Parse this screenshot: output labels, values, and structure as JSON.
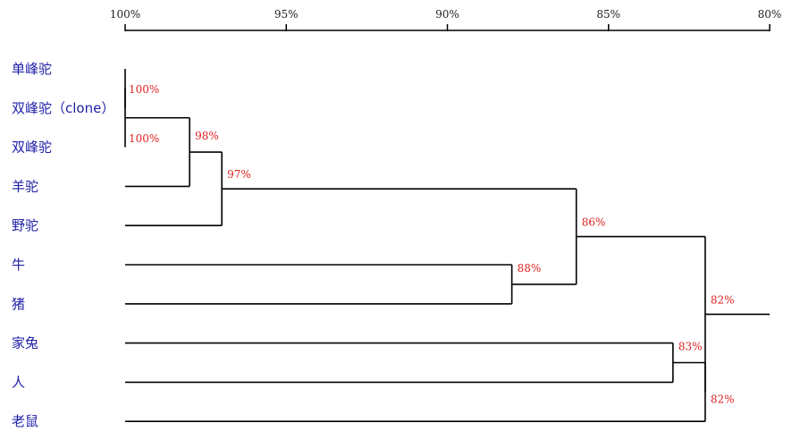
{
  "dendrogram": {
    "axis": {
      "ticks": [
        "100%",
        "95%",
        "90%",
        "85%",
        "80%"
      ]
    },
    "leaves": [
      "单峰驼",
      "双峰驼（clone）",
      "双峰驼",
      "羊驼",
      "野驼",
      "牛",
      "猪",
      "家兔",
      "人",
      "老鼠"
    ],
    "nodes": [
      {
        "id": "n1",
        "similarity": 100,
        "label": "100%",
        "children": [
          "单峰驼",
          "双峰驼（clone）"
        ]
      },
      {
        "id": "n2",
        "similarity": 100,
        "label": "100%",
        "children": [
          "n1",
          "双峰驼"
        ]
      },
      {
        "id": "n3",
        "similarity": 98,
        "label": "98%",
        "children": [
          "n2",
          "羊驼"
        ]
      },
      {
        "id": "n4",
        "similarity": 97,
        "label": "97%",
        "children": [
          "n3",
          "野驼"
        ]
      },
      {
        "id": "n5",
        "similarity": 88,
        "label": "88%",
        "children": [
          "牛",
          "猪"
        ]
      },
      {
        "id": "n6",
        "similarity": 86,
        "label": "86%",
        "children": [
          "n4",
          "n5"
        ]
      },
      {
        "id": "n7",
        "similarity": 83,
        "label": "83%",
        "children": [
          "家兔",
          "人"
        ]
      },
      {
        "id": "n8",
        "similarity": 82,
        "label": "82%",
        "children": [
          "n7",
          "老鼠"
        ]
      },
      {
        "id": "n9",
        "similarity": 82,
        "label": "82%",
        "children": [
          "n6",
          "n8"
        ]
      }
    ],
    "colors": {
      "leaf_label": "#1f1fa8",
      "similarity_label": "#e02020",
      "lines": "#000000"
    }
  }
}
